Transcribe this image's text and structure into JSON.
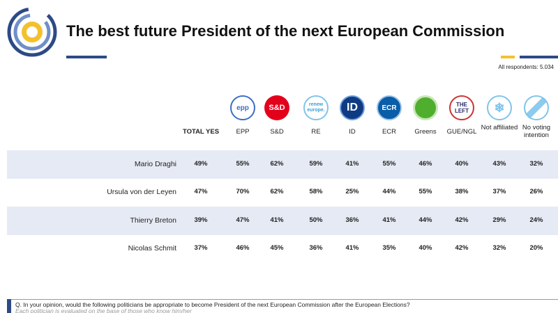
{
  "header": {
    "title": "The best future President of the next European Commission",
    "note": "All respondents: 5.034"
  },
  "table": {
    "total_header": "TOTAL YES",
    "columns": [
      {
        "label": "EPP",
        "logo": "epp"
      },
      {
        "label": "S&D",
        "logo": "S&D"
      },
      {
        "label": "RE",
        "logo": "renew europe."
      },
      {
        "label": "ID",
        "logo": "ID"
      },
      {
        "label": "ECR",
        "logo": "ECR"
      },
      {
        "label": "Greens"
      },
      {
        "label": "GUE/NGL",
        "logo": "THE LEFT"
      },
      {
        "label": "Not affiliated"
      },
      {
        "label": "No voting intention"
      }
    ],
    "rows": [
      {
        "name": "Mario Draghi",
        "values": [
          "49%",
          "55%",
          "62%",
          "59%",
          "41%",
          "55%",
          "46%",
          "40%",
          "43%",
          "32%"
        ]
      },
      {
        "name": "Ursula von der Leyen",
        "values": [
          "47%",
          "70%",
          "62%",
          "58%",
          "25%",
          "44%",
          "55%",
          "38%",
          "37%",
          "26%"
        ]
      },
      {
        "name": "Thierry Breton",
        "values": [
          "39%",
          "47%",
          "41%",
          "50%",
          "36%",
          "41%",
          "44%",
          "42%",
          "29%",
          "24%"
        ]
      },
      {
        "name": "Nicolas Schmit",
        "values": [
          "37%",
          "46%",
          "45%",
          "36%",
          "41%",
          "35%",
          "40%",
          "42%",
          "32%",
          "20%"
        ]
      }
    ]
  },
  "footer": {
    "question": "Q. In your opinion, would the following politicians be appropriate to become President of the next European Commission after the European Elections?",
    "subnote": "Each politician is evaluated on the base of those who know him/her"
  }
}
